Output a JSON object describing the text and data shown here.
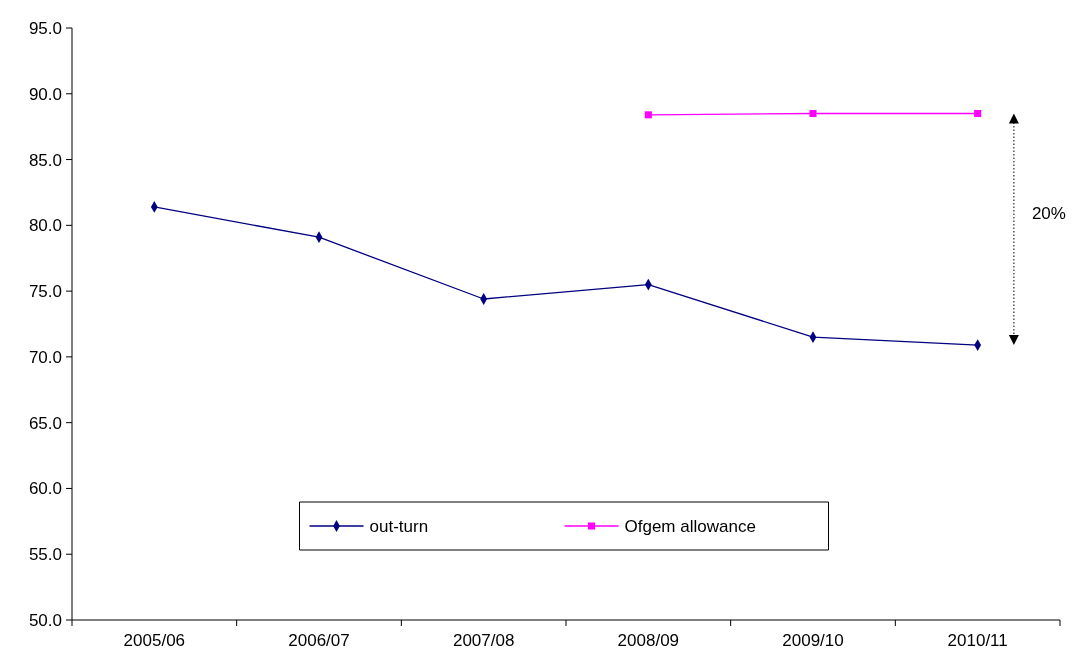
{
  "chart_data": {
    "type": "line",
    "categories": [
      "2005/06",
      "2006/07",
      "2007/08",
      "2008/09",
      "2009/10",
      "2010/11"
    ],
    "series": [
      {
        "name": "out-turn",
        "color": "#000080",
        "marker": "diamond",
        "values": [
          81.4,
          79.1,
          74.4,
          75.5,
          71.5,
          70.9
        ]
      },
      {
        "name": "Ofgem allowance",
        "color": "#ff00ff",
        "marker": "square",
        "values": [
          null,
          null,
          null,
          88.4,
          88.5,
          88.5
        ]
      }
    ],
    "ylim": [
      50,
      95
    ],
    "yticks": [
      {
        "value": 50,
        "label": "50.0"
      },
      {
        "value": 55,
        "label": "55.0"
      },
      {
        "value": 60,
        "label": "60.0"
      },
      {
        "value": 65,
        "label": "65.0"
      },
      {
        "value": 70,
        "label": "70.0"
      },
      {
        "value": 75,
        "label": "75.0"
      },
      {
        "value": 80,
        "label": "80.0"
      },
      {
        "value": 85,
        "label": "85.0"
      },
      {
        "value": 90,
        "label": "90.0"
      },
      {
        "value": 95,
        "label": "95.0"
      }
    ],
    "annotations": [
      "20%"
    ],
    "legend": "bottom",
    "grid": false
  }
}
